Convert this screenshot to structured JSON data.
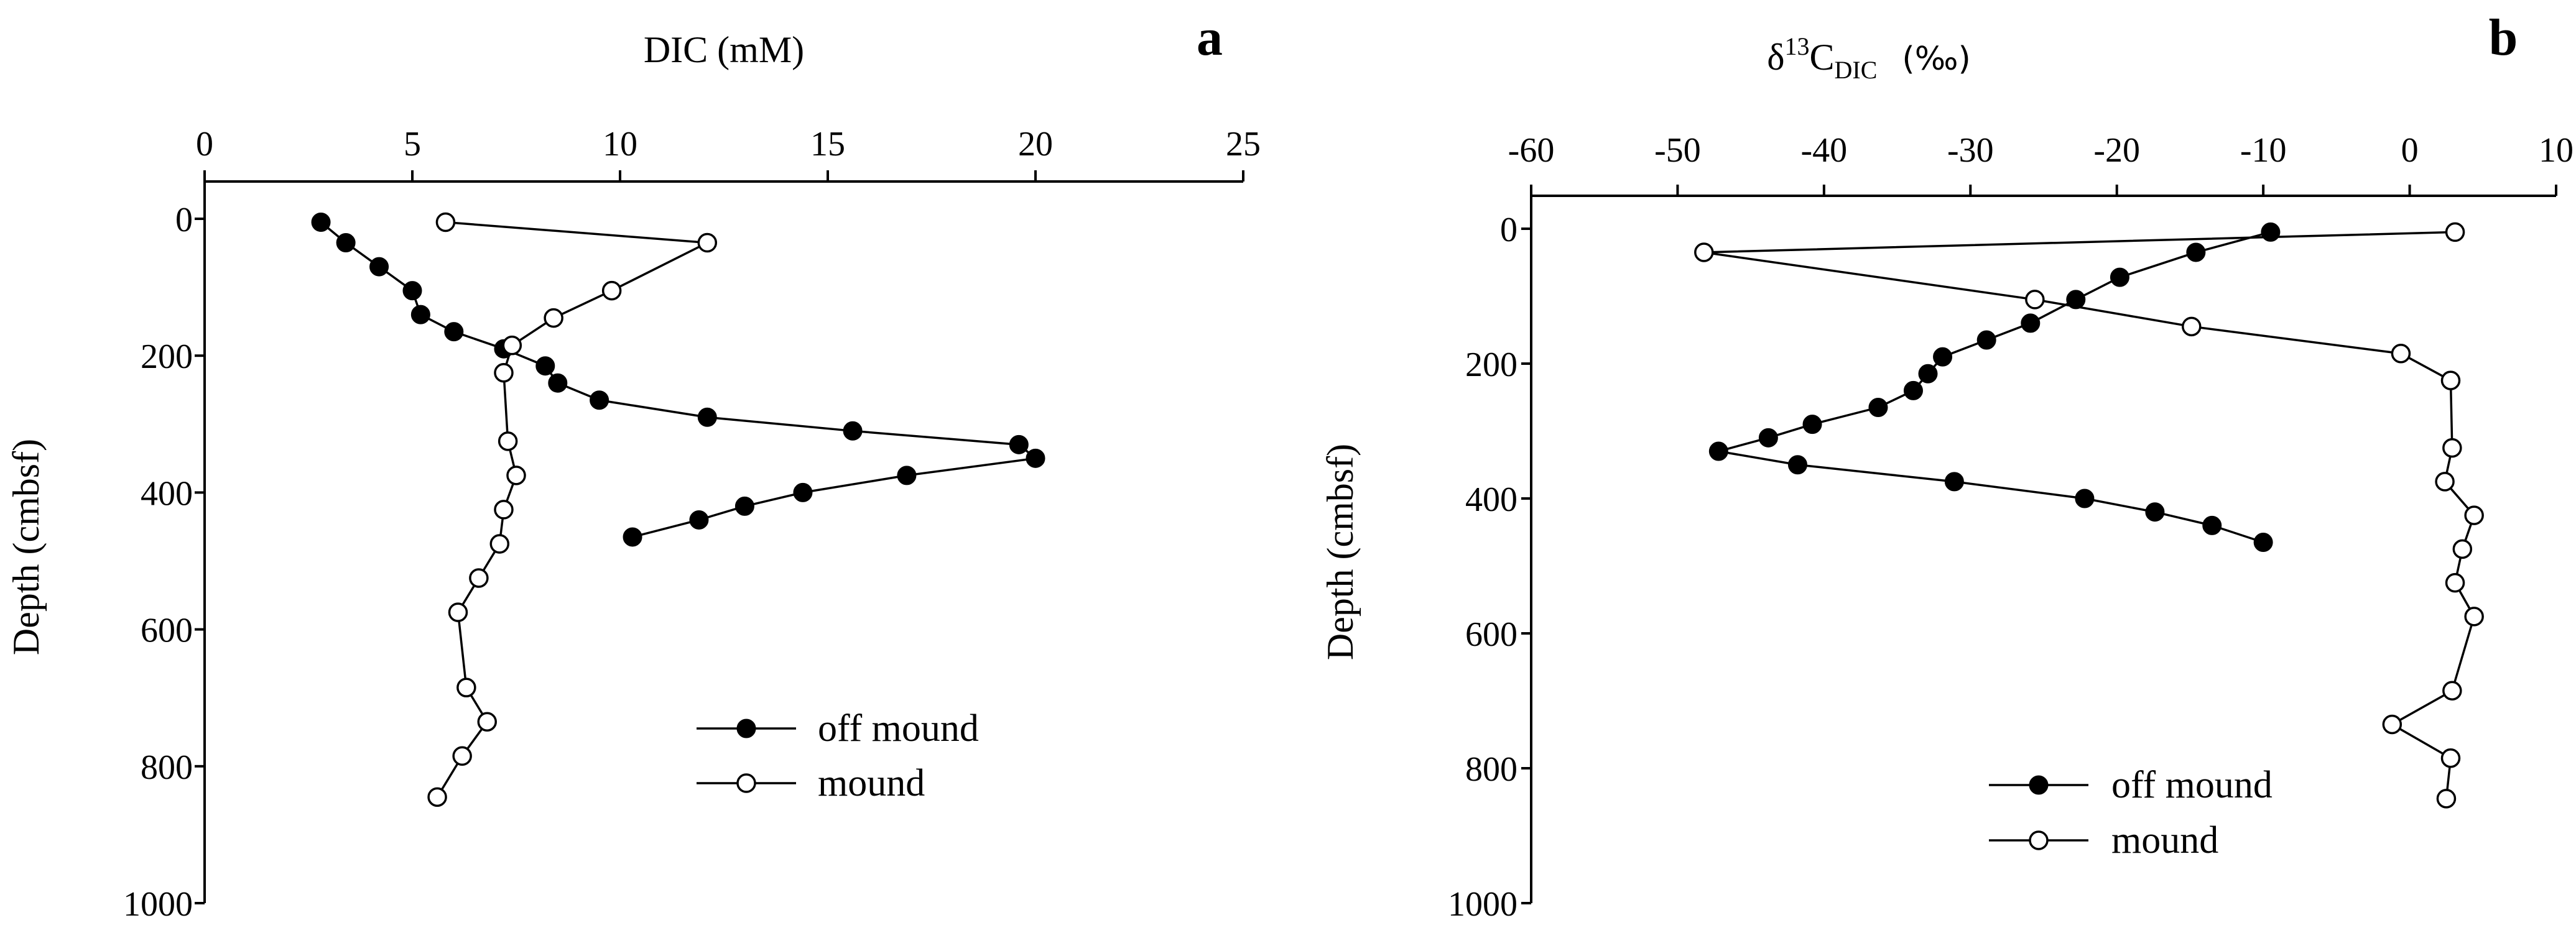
{
  "chart_data": [
    {
      "type": "line",
      "panel_label": "a",
      "xlabel": "DIC (mM)",
      "ylabel": "Depth (cmbsf)",
      "xlim": [
        0,
        25
      ],
      "ylim": [
        0,
        1000
      ],
      "x_ticks": [
        "0",
        "5",
        "10",
        "15",
        "20",
        "25"
      ],
      "y_ticks": [
        "0",
        "200",
        "400",
        "600",
        "800",
        "1000"
      ],
      "legend_position": "bottom-right",
      "series": [
        {
          "name": "off mound",
          "marker": "filled",
          "points": [
            {
              "x": 2.8,
              "y": 5
            },
            {
              "x": 3.4,
              "y": 35
            },
            {
              "x": 4.2,
              "y": 70
            },
            {
              "x": 5.0,
              "y": 105
            },
            {
              "x": 5.2,
              "y": 140
            },
            {
              "x": 6.0,
              "y": 165
            },
            {
              "x": 7.2,
              "y": 190
            },
            {
              "x": 8.2,
              "y": 215
            },
            {
              "x": 8.5,
              "y": 240
            },
            {
              "x": 9.5,
              "y": 265
            },
            {
              "x": 12.1,
              "y": 290
            },
            {
              "x": 15.6,
              "y": 310
            },
            {
              "x": 19.6,
              "y": 330
            },
            {
              "x": 20.0,
              "y": 350
            },
            {
              "x": 16.9,
              "y": 375
            },
            {
              "x": 14.4,
              "y": 400
            },
            {
              "x": 13.0,
              "y": 420
            },
            {
              "x": 11.9,
              "y": 440
            },
            {
              "x": 10.3,
              "y": 465
            }
          ]
        },
        {
          "name": "mound",
          "marker": "open",
          "points": [
            {
              "x": 5.8,
              "y": 5
            },
            {
              "x": 12.1,
              "y": 35
            },
            {
              "x": 9.8,
              "y": 105
            },
            {
              "x": 8.4,
              "y": 145
            },
            {
              "x": 7.4,
              "y": 185
            },
            {
              "x": 7.2,
              "y": 225
            },
            {
              "x": 7.3,
              "y": 325
            },
            {
              "x": 7.5,
              "y": 375
            },
            {
              "x": 7.2,
              "y": 425
            },
            {
              "x": 7.1,
              "y": 475
            },
            {
              "x": 6.6,
              "y": 525
            },
            {
              "x": 6.1,
              "y": 575
            },
            {
              "x": 6.3,
              "y": 685
            },
            {
              "x": 6.8,
              "y": 735
            },
            {
              "x": 6.2,
              "y": 785
            },
            {
              "x": 5.6,
              "y": 845
            }
          ]
        }
      ]
    },
    {
      "type": "line",
      "panel_label": "b",
      "xlabel_main": "δ",
      "xlabel_sup": "13",
      "xlabel_mid": "C",
      "xlabel_sub": "DIC",
      "xlabel_unit": "(‰)",
      "ylabel": "Depth (cmbsf)",
      "xlim": [
        -60,
        10
      ],
      "ylim": [
        0,
        1000
      ],
      "x_ticks": [
        "-60",
        "-50",
        "-40",
        "-30",
        "-20",
        "-10",
        "0",
        "10"
      ],
      "y_ticks": [
        "0",
        "200",
        "400",
        "600",
        "800",
        "1000"
      ],
      "legend_position": "bottom-right",
      "series": [
        {
          "name": "off mound",
          "marker": "filled",
          "points": [
            {
              "x": -9.5,
              "y": 5
            },
            {
              "x": -14.6,
              "y": 35
            },
            {
              "x": -19.8,
              "y": 72
            },
            {
              "x": -22.8,
              "y": 105
            },
            {
              "x": -25.9,
              "y": 140
            },
            {
              "x": -28.9,
              "y": 165
            },
            {
              "x": -31.9,
              "y": 190
            },
            {
              "x": -32.9,
              "y": 215
            },
            {
              "x": -33.9,
              "y": 240
            },
            {
              "x": -36.3,
              "y": 265
            },
            {
              "x": -40.8,
              "y": 290
            },
            {
              "x": -43.8,
              "y": 310
            },
            {
              "x": -47.2,
              "y": 330
            },
            {
              "x": -41.8,
              "y": 350
            },
            {
              "x": -31.1,
              "y": 375
            },
            {
              "x": -22.2,
              "y": 400
            },
            {
              "x": -17.4,
              "y": 420
            },
            {
              "x": -13.5,
              "y": 440
            },
            {
              "x": -10.0,
              "y": 465
            }
          ]
        },
        {
          "name": "mound",
          "marker": "open",
          "points": [
            {
              "x": 3.1,
              "y": 5
            },
            {
              "x": -48.2,
              "y": 35
            },
            {
              "x": -25.6,
              "y": 105
            },
            {
              "x": -14.9,
              "y": 145
            },
            {
              "x": -0.6,
              "y": 185
            },
            {
              "x": 2.8,
              "y": 225
            },
            {
              "x": 2.9,
              "y": 325
            },
            {
              "x": 2.4,
              "y": 375
            },
            {
              "x": 4.4,
              "y": 425
            },
            {
              "x": 3.6,
              "y": 475
            },
            {
              "x": 3.1,
              "y": 525
            },
            {
              "x": 4.4,
              "y": 575
            },
            {
              "x": 2.9,
              "y": 685
            },
            {
              "x": -1.2,
              "y": 735
            },
            {
              "x": 2.8,
              "y": 785
            },
            {
              "x": 2.5,
              "y": 845
            }
          ]
        }
      ]
    }
  ]
}
